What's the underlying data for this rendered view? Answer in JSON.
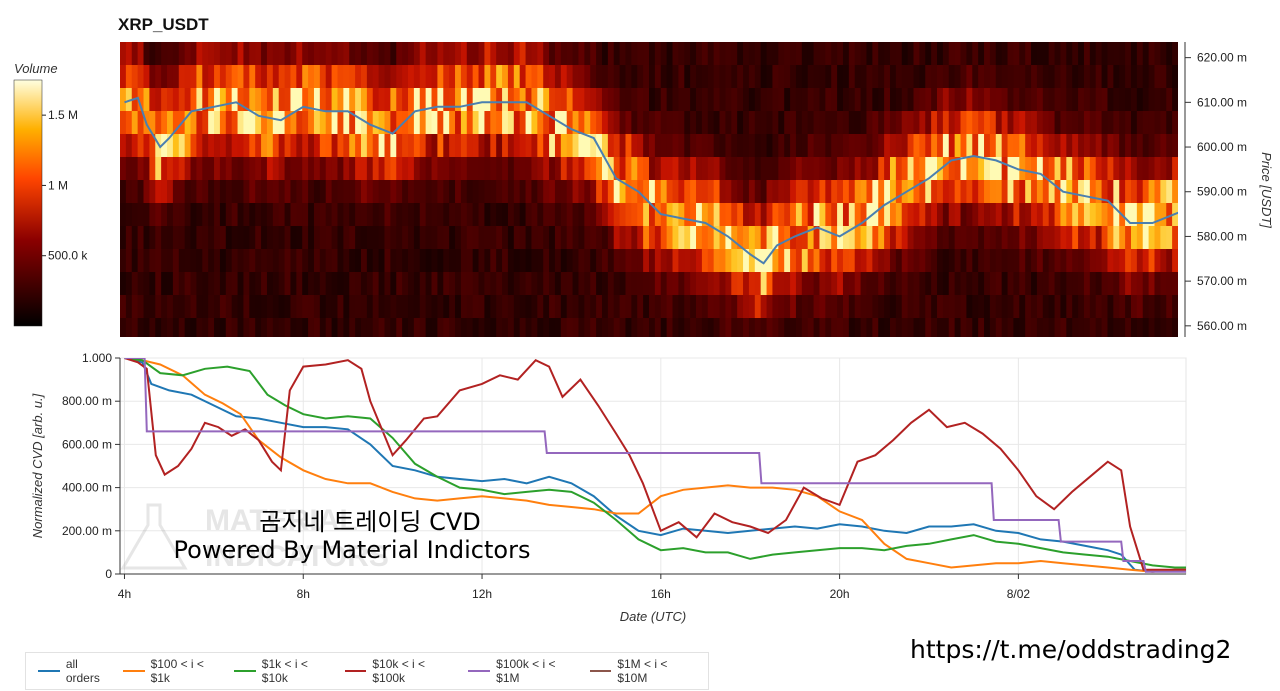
{
  "chart_data": [
    {
      "type": "heatmap",
      "title": "XRP_USDT",
      "ylabel": "Price [USDT]",
      "ylim": [
        0.5575,
        0.6235
      ],
      "yticks": [
        {
          "value": 0.62,
          "label": "620.00 m"
        },
        {
          "value": 0.61,
          "label": "610.00 m"
        },
        {
          "value": 0.6,
          "label": "600.00 m"
        },
        {
          "value": 0.59,
          "label": "590.00 m"
        },
        {
          "value": 0.58,
          "label": "580.00 m"
        },
        {
          "value": 0.57,
          "label": "570.00 m"
        },
        {
          "value": 0.56,
          "label": "560.00 m"
        }
      ],
      "colorbar": {
        "label": "Volume",
        "range": [
          0,
          1750000
        ],
        "ticks": [
          {
            "value": 1500000,
            "label": "1.5 M"
          },
          {
            "value": 1000000,
            "label": "1 M"
          },
          {
            "value": 500000,
            "label": "500.0 k"
          }
        ]
      },
      "price_line": {
        "color": "#4a7fb0",
        "x_hours": [
          4,
          4.3,
          4.5,
          4.8,
          5,
          5.5,
          6,
          6.5,
          7,
          7.5,
          8,
          8.5,
          9,
          9.5,
          10,
          10.5,
          11,
          11.5,
          12,
          12.5,
          13,
          13.5,
          14,
          14.5,
          15,
          15.5,
          16,
          16.5,
          17,
          17.5,
          18,
          18.3,
          18.6,
          19,
          19.5,
          20,
          20.5,
          21,
          21.5,
          22,
          22.5,
          23,
          23.5,
          24,
          24.5,
          25,
          25.5,
          26,
          26.5,
          27,
          27.5,
          27.75
        ],
        "values": [
          0.61,
          0.611,
          0.605,
          0.6,
          0.602,
          0.608,
          0.609,
          0.61,
          0.607,
          0.606,
          0.609,
          0.608,
          0.608,
          0.605,
          0.603,
          0.608,
          0.609,
          0.609,
          0.61,
          0.61,
          0.61,
          0.607,
          0.604,
          0.602,
          0.593,
          0.59,
          0.585,
          0.584,
          0.583,
          0.58,
          0.576,
          0.574,
          0.578,
          0.58,
          0.582,
          0.58,
          0.583,
          0.587,
          0.59,
          0.593,
          0.597,
          0.598,
          0.597,
          0.595,
          0.594,
          0.59,
          0.589,
          0.588,
          0.583,
          0.583,
          0.585,
          0.586
        ]
      }
    },
    {
      "type": "line",
      "xlabel": "Date (UTC)",
      "ylabel": "Normalized CVD [arb. u.]",
      "xlim": [
        3.9,
        27.75
      ],
      "ylim": [
        0,
        1.0
      ],
      "xticks": [
        {
          "value": 4,
          "label": "4h"
        },
        {
          "value": 8,
          "label": "8h"
        },
        {
          "value": 12,
          "label": "12h"
        },
        {
          "value": 16,
          "label": "16h"
        },
        {
          "value": 20,
          "label": "20h"
        },
        {
          "value": 24,
          "label": "8/02"
        }
      ],
      "yticks": [
        {
          "value": 1.0,
          "label": "1.000"
        },
        {
          "value": 0.8,
          "label": "800.00 m"
        },
        {
          "value": 0.6,
          "label": "600.00 m"
        },
        {
          "value": 0.4,
          "label": "400.00 m"
        },
        {
          "value": 0.2,
          "label": "200.00 m"
        },
        {
          "value": 0.0,
          "label": "0"
        }
      ],
      "series": [
        {
          "name": "all orders",
          "color": "#1f77b4",
          "x": [
            4,
            4.4,
            4.6,
            5,
            5.5,
            6,
            6.5,
            7,
            7.5,
            8,
            8.5,
            9,
            9.5,
            10,
            10.5,
            11,
            11.5,
            12,
            12.5,
            13,
            13.5,
            14,
            14.5,
            15,
            15.5,
            16,
            16.5,
            17,
            17.5,
            18,
            18.5,
            19,
            19.5,
            20,
            20.5,
            21,
            21.5,
            22,
            22.5,
            23,
            23.5,
            24,
            24.5,
            25,
            25.5,
            26,
            26.3,
            26.6,
            27,
            27.5,
            27.75
          ],
          "values": [
            1.0,
            0.98,
            0.88,
            0.85,
            0.83,
            0.78,
            0.73,
            0.72,
            0.7,
            0.68,
            0.68,
            0.67,
            0.6,
            0.5,
            0.48,
            0.45,
            0.44,
            0.43,
            0.44,
            0.42,
            0.45,
            0.42,
            0.36,
            0.27,
            0.2,
            0.18,
            0.21,
            0.2,
            0.19,
            0.2,
            0.21,
            0.22,
            0.21,
            0.23,
            0.22,
            0.2,
            0.19,
            0.22,
            0.22,
            0.23,
            0.2,
            0.19,
            0.16,
            0.15,
            0.13,
            0.11,
            0.09,
            0.02,
            0.01,
            0.02,
            0.02
          ]
        },
        {
          "name": "$100 < i < $1k",
          "color": "#ff7f0e",
          "x": [
            4,
            4.4,
            4.8,
            5.3,
            5.8,
            6.2,
            6.6,
            7,
            7.5,
            8,
            8.5,
            9,
            9.5,
            10,
            10.5,
            11,
            11.5,
            12,
            12.5,
            13,
            13.5,
            14,
            14.5,
            15,
            15.5,
            16,
            16.5,
            17,
            17.5,
            18,
            18.5,
            19,
            19.5,
            20,
            20.5,
            21,
            21.5,
            22,
            22.5,
            23,
            23.5,
            24,
            24.5,
            25,
            25.5,
            26,
            26.5,
            27,
            27.5,
            27.75
          ],
          "values": [
            1.0,
            0.99,
            0.97,
            0.92,
            0.83,
            0.79,
            0.74,
            0.62,
            0.54,
            0.48,
            0.44,
            0.42,
            0.42,
            0.38,
            0.35,
            0.34,
            0.35,
            0.36,
            0.35,
            0.34,
            0.32,
            0.31,
            0.3,
            0.28,
            0.28,
            0.36,
            0.39,
            0.4,
            0.41,
            0.4,
            0.4,
            0.39,
            0.36,
            0.29,
            0.25,
            0.14,
            0.07,
            0.05,
            0.03,
            0.04,
            0.05,
            0.05,
            0.06,
            0.05,
            0.04,
            0.03,
            0.02,
            0.01,
            0.02,
            0.02
          ]
        },
        {
          "name": "$1k < i < $10k",
          "color": "#2ca02c",
          "x": [
            4,
            4.4,
            4.8,
            5.3,
            5.8,
            6.3,
            6.8,
            7.2,
            7.6,
            8,
            8.5,
            9,
            9.5,
            10,
            10.5,
            11,
            11.5,
            12,
            12.5,
            13,
            13.5,
            14,
            14.5,
            15,
            15.5,
            16,
            16.5,
            17,
            17.5,
            18,
            18.5,
            19,
            19.5,
            20,
            20.5,
            21,
            21.5,
            22,
            22.5,
            23,
            23.5,
            24,
            24.5,
            25,
            25.5,
            26,
            26.5,
            27,
            27.5,
            27.75
          ],
          "values": [
            1.0,
            0.99,
            0.93,
            0.92,
            0.95,
            0.96,
            0.94,
            0.83,
            0.78,
            0.74,
            0.72,
            0.73,
            0.72,
            0.63,
            0.51,
            0.45,
            0.4,
            0.39,
            0.37,
            0.38,
            0.39,
            0.38,
            0.33,
            0.25,
            0.16,
            0.11,
            0.12,
            0.1,
            0.1,
            0.07,
            0.09,
            0.1,
            0.11,
            0.12,
            0.12,
            0.11,
            0.13,
            0.14,
            0.16,
            0.18,
            0.15,
            0.14,
            0.12,
            0.1,
            0.09,
            0.08,
            0.06,
            0.04,
            0.03,
            0.03
          ]
        },
        {
          "name": "$10k < i < $100k",
          "color": "#b22222",
          "x": [
            4,
            4.3,
            4.5,
            4.7,
            4.9,
            5.2,
            5.5,
            5.8,
            6.1,
            6.4,
            6.7,
            7.0,
            7.3,
            7.5,
            7.7,
            8.0,
            8.5,
            9.0,
            9.3,
            9.5,
            9.8,
            10.0,
            10.3,
            10.7,
            11.0,
            11.5,
            12.0,
            12.4,
            12.8,
            13.2,
            13.5,
            13.8,
            14.2,
            14.6,
            15.0,
            15.3,
            15.6,
            16.0,
            16.4,
            16.8,
            17.2,
            17.6,
            18.0,
            18.4,
            18.8,
            19.2,
            19.6,
            20.0,
            20.4,
            20.8,
            21.2,
            21.6,
            22.0,
            22.4,
            22.8,
            23.2,
            23.6,
            24.0,
            24.4,
            24.8,
            25.2,
            25.6,
            26.0,
            26.3,
            26.5,
            26.8,
            27.2,
            27.75
          ],
          "values": [
            1.0,
            0.98,
            0.95,
            0.55,
            0.46,
            0.5,
            0.58,
            0.7,
            0.68,
            0.64,
            0.67,
            0.62,
            0.52,
            0.48,
            0.85,
            0.96,
            0.97,
            0.99,
            0.95,
            0.8,
            0.65,
            0.55,
            0.62,
            0.72,
            0.73,
            0.85,
            0.88,
            0.92,
            0.9,
            0.99,
            0.96,
            0.82,
            0.9,
            0.78,
            0.65,
            0.55,
            0.42,
            0.2,
            0.24,
            0.17,
            0.28,
            0.24,
            0.22,
            0.19,
            0.25,
            0.4,
            0.35,
            0.32,
            0.52,
            0.55,
            0.62,
            0.7,
            0.76,
            0.68,
            0.7,
            0.65,
            0.58,
            0.48,
            0.36,
            0.3,
            0.38,
            0.45,
            0.52,
            0.48,
            0.22,
            0.02,
            0.02,
            0.02
          ]
        },
        {
          "name": "$100k < i < $1M",
          "color": "#9467bd",
          "x": [
            4,
            4.45,
            4.5,
            13.4,
            13.45,
            18.2,
            18.25,
            23.4,
            23.45,
            24.9,
            24.95,
            26.3,
            26.35,
            26.8,
            26.85,
            27.75
          ],
          "values": [
            1.0,
            1.0,
            0.66,
            0.66,
            0.56,
            0.56,
            0.42,
            0.42,
            0.25,
            0.25,
            0.15,
            0.15,
            0.06,
            0.06,
            0.01,
            0.01
          ]
        },
        {
          "name": "$1M < i < $10M",
          "color": "#8c564b",
          "x": [
            4,
            27.75
          ],
          "values": [
            null,
            null
          ]
        }
      ]
    }
  ],
  "overlay": {
    "line1": "곰지네 트레이딩 CVD",
    "line2": "Powered By Material Indictors",
    "url": "https://t.me/oddstrading2",
    "logo_line1": "MATERIAL",
    "logo_line2": "INDICATORS"
  }
}
